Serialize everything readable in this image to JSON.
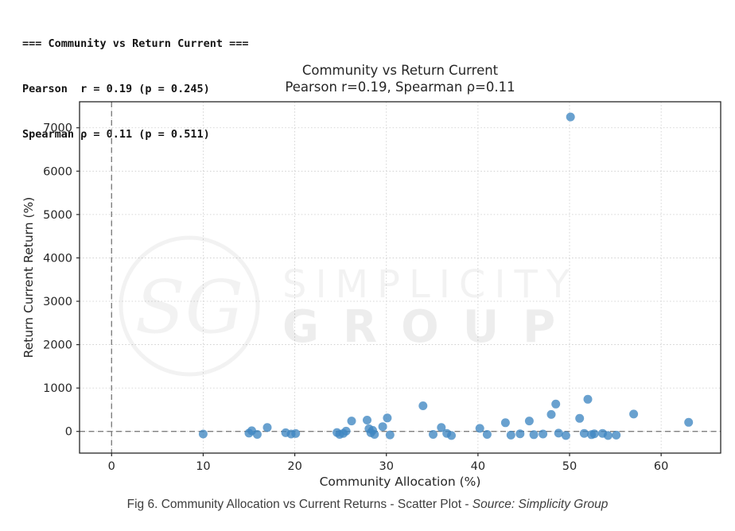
{
  "stats": {
    "line1": "=== Community vs Return Current ===",
    "line2": "Pearson  r = 0.19 (p = 0.245)",
    "line3": "Spearman ρ = 0.11 (p = 0.511)"
  },
  "chart_data": {
    "type": "scatter",
    "title": "Community vs Return Current",
    "subtitle": "Pearson r=0.19, Spearman ρ=0.11",
    "xlabel": "Community Allocation (%)",
    "ylabel": "Return Current Return (%)",
    "xlim": [
      -3.5,
      66.5
    ],
    "ylim": [
      -500,
      7600
    ],
    "xticks": [
      0,
      10,
      20,
      30,
      40,
      50,
      60
    ],
    "yticks": [
      0,
      1000,
      2000,
      3000,
      4000,
      5000,
      6000,
      7000
    ],
    "grid": true,
    "legend": "none",
    "ref_lines": {
      "x": 0,
      "y": 0
    },
    "point_color": "#3f87c1",
    "points": [
      [
        10,
        -60
      ],
      [
        15,
        -40
      ],
      [
        15.3,
        15
      ],
      [
        15.9,
        -70
      ],
      [
        17,
        90
      ],
      [
        19,
        -30
      ],
      [
        19.6,
        -60
      ],
      [
        20.1,
        -50
      ],
      [
        24.6,
        -25
      ],
      [
        24.9,
        -70
      ],
      [
        25.3,
        -45
      ],
      [
        25.6,
        5
      ],
      [
        26.2,
        240
      ],
      [
        27.9,
        260
      ],
      [
        28.1,
        60
      ],
      [
        28.3,
        -30
      ],
      [
        28.5,
        25
      ],
      [
        28.7,
        -70
      ],
      [
        29.6,
        110
      ],
      [
        30.1,
        310
      ],
      [
        30.4,
        -80
      ],
      [
        34,
        590
      ],
      [
        35.1,
        -70
      ],
      [
        36,
        90
      ],
      [
        36.6,
        -45
      ],
      [
        37.1,
        -95
      ],
      [
        40.2,
        70
      ],
      [
        41,
        -70
      ],
      [
        43,
        200
      ],
      [
        43.6,
        -85
      ],
      [
        44.6,
        -55
      ],
      [
        45.6,
        240
      ],
      [
        46.1,
        -75
      ],
      [
        47.1,
        -60
      ],
      [
        48,
        390
      ],
      [
        48.5,
        630
      ],
      [
        48.8,
        -40
      ],
      [
        49.6,
        -95
      ],
      [
        50.1,
        7250
      ],
      [
        51.1,
        300
      ],
      [
        51.6,
        -45
      ],
      [
        52,
        740
      ],
      [
        52.4,
        -75
      ],
      [
        52.7,
        -55
      ],
      [
        53.6,
        -45
      ],
      [
        54.2,
        -95
      ],
      [
        55.1,
        -85
      ],
      [
        57,
        400
      ],
      [
        63,
        210
      ]
    ]
  },
  "watermark": {
    "monogram": "SG",
    "line1": "SIMPLICITY",
    "line2": "GROUP"
  },
  "caption": {
    "text": "Fig 6. Community Allocation vs Current Returns - Scatter Plot - ",
    "source": "Source: Simplicity Group"
  }
}
